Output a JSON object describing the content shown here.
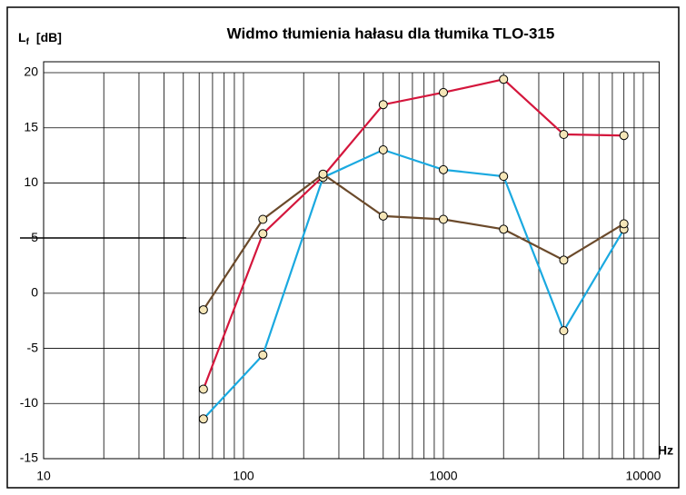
{
  "chart_data": {
    "type": "line",
    "title": "Widmo tłumienia hałasu dla tłumika TLO-315",
    "ylabel": {
      "main": "L",
      "sub": "f",
      "unit": "[dB]"
    },
    "xlabel": "Hz",
    "x": [
      63,
      125,
      250,
      500,
      1000,
      2000,
      4000,
      8000
    ],
    "series": [
      {
        "name": "czerwona",
        "color": "#d4163c",
        "values": [
          -8.7,
          5.4,
          10.6,
          17.1,
          18.2,
          19.4,
          14.4,
          14.3
        ]
      },
      {
        "name": "niebieska",
        "color": "#1aa9e0",
        "values": [
          -11.4,
          -5.6,
          10.5,
          13.0,
          11.2,
          10.6,
          -3.4,
          5.8
        ]
      },
      {
        "name": "brązowa",
        "color": "#6b4a2b",
        "values": [
          -1.5,
          6.7,
          10.8,
          7.0,
          6.7,
          5.8,
          3.0,
          6.3
        ]
      }
    ],
    "xlim": [
      10,
      12000
    ],
    "xticks": [
      10,
      100,
      1000,
      10000
    ],
    "xlog": true,
    "xminor_grid": true,
    "ylim": [
      -15,
      20
    ],
    "yticks": [
      -15,
      -10,
      -5,
      0,
      5,
      10,
      15,
      20
    ],
    "grid": true,
    "marker_color": "#f5e6b8"
  }
}
